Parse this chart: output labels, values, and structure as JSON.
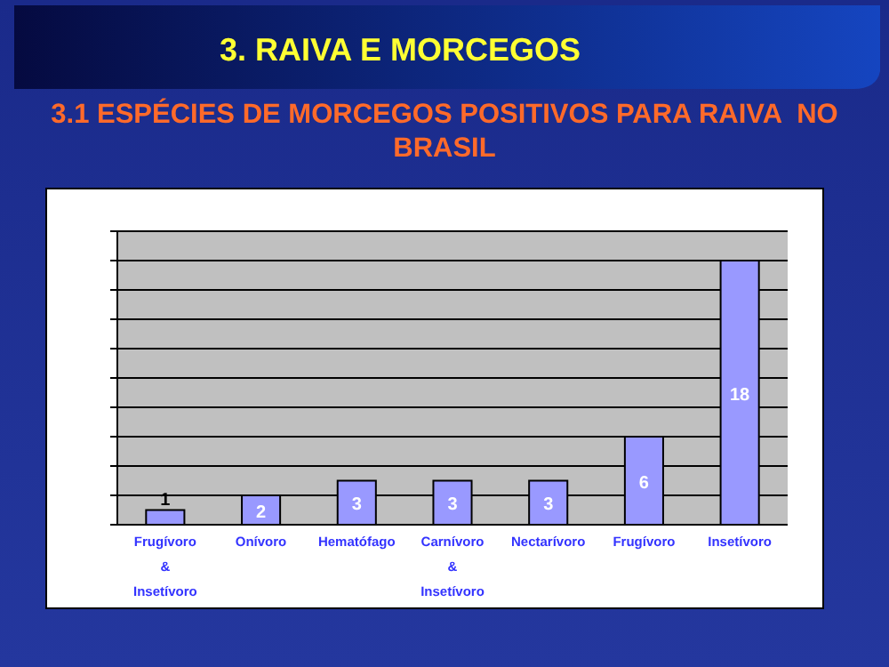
{
  "chart_data": {
    "type": "bar",
    "title": "3. RAIVA E MORCEGOS",
    "subtitle": "3.1 ESPÉCIES DE MORCEGOS POSITIVOS PARA RAIVA  NO BRASIL",
    "categories": [
      "Frugívoro\n&\nInsetívoro",
      "Onívoro",
      "Hematófago",
      "Carnívoro\n&\nInsetívoro",
      "Nectarívoro",
      "Frugívoro",
      "Insetívoro"
    ],
    "values": [
      1,
      2,
      3,
      3,
      3,
      6,
      18
    ],
    "color": "#9999ff",
    "data_labels": true,
    "ylim": [
      0,
      20
    ],
    "yticks": [
      {
        "value": 0,
        "label": null
      },
      {
        "value": 2,
        "label": null
      },
      {
        "value": 4,
        "label": null
      },
      {
        "value": 6,
        "label": null
      },
      {
        "value": 8,
        "label": null
      },
      {
        "value": 10,
        "label": null
      },
      {
        "value": 12,
        "label": null
      },
      {
        "value": 14,
        "label": null
      },
      {
        "value": 16,
        "label": null
      },
      {
        "value": 18,
        "label": null
      },
      {
        "value": 20,
        "label": null
      }
    ],
    "grid": "y",
    "tick_labels": "x"
  }
}
